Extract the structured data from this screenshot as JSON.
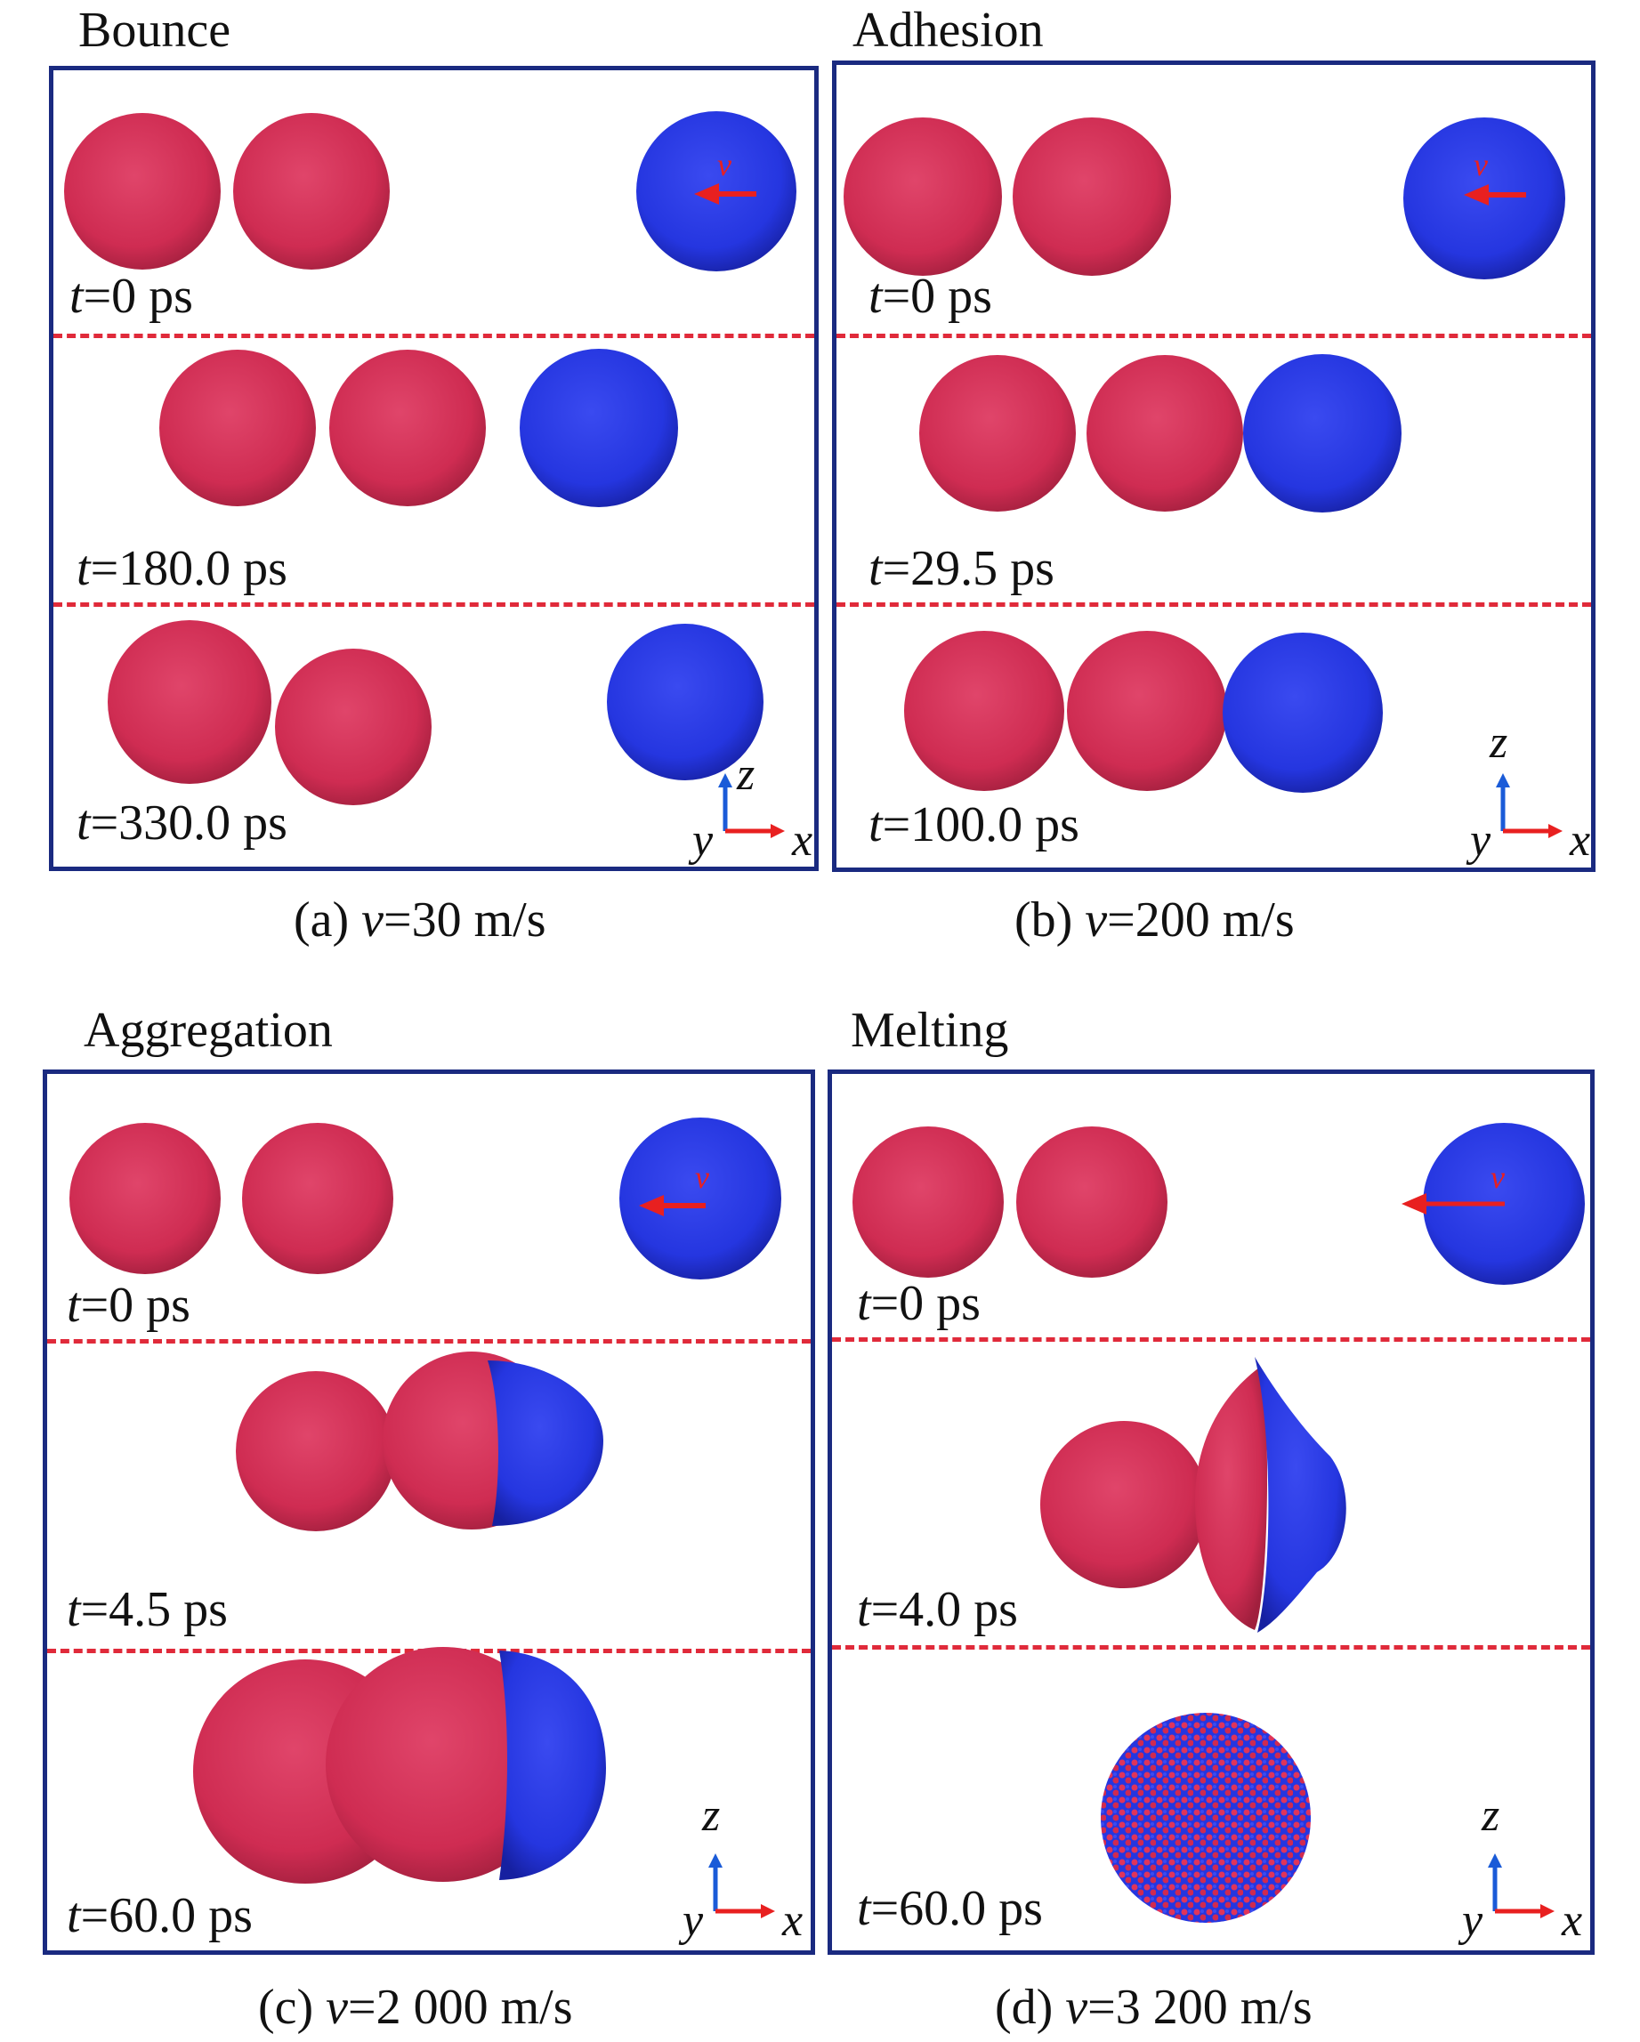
{
  "colors": {
    "particle_red": "#d42f55",
    "particle_red_dark": "#a01f3d",
    "particle_blue": "#2536e0",
    "particle_blue_dark": "#1620a0",
    "frame": "#1a2a80",
    "separator": "#e02a3a",
    "arrow_red": "#e82020",
    "axis_blue": "#1a5bd8",
    "axis_red": "#e82020"
  },
  "panels": [
    {
      "title": "Bounce",
      "caption": {
        "label": "(a)",
        "var": "v",
        "value": "=30 m/s"
      },
      "velocity_label": "v",
      "frames": [
        {
          "t_var": "t",
          "t_value": "=0 ps"
        },
        {
          "t_var": "t",
          "t_value": "=180.0 ps"
        },
        {
          "t_var": "t",
          "t_value": "=330.0 ps"
        }
      ],
      "axes": {
        "z": "z",
        "y": "y",
        "x": "x"
      }
    },
    {
      "title": "Adhesion",
      "caption": {
        "label": "(b)",
        "var": "v",
        "value": "=200 m/s"
      },
      "velocity_label": "v",
      "frames": [
        {
          "t_var": "t",
          "t_value": "=0 ps"
        },
        {
          "t_var": "t",
          "t_value": "=29.5 ps"
        },
        {
          "t_var": "t",
          "t_value": "=100.0 ps"
        }
      ],
      "axes": {
        "z": "z",
        "y": "y",
        "x": "x"
      }
    },
    {
      "title": "Aggregation",
      "caption": {
        "label": "(c)",
        "var": "v",
        "value": "=2 000 m/s"
      },
      "velocity_label": "v",
      "frames": [
        {
          "t_var": "t",
          "t_value": "=0 ps"
        },
        {
          "t_var": "t",
          "t_value": "=4.5 ps"
        },
        {
          "t_var": "t",
          "t_value": "=60.0 ps"
        }
      ],
      "axes": {
        "z": "z",
        "y": "y",
        "x": "x"
      }
    },
    {
      "title": "Melting",
      "caption": {
        "label": "(d)",
        "var": "v",
        "value": "=3 200 m/s"
      },
      "velocity_label": "v",
      "frames": [
        {
          "t_var": "t",
          "t_value": "=0 ps"
        },
        {
          "t_var": "t",
          "t_value": "=4.0 ps"
        },
        {
          "t_var": "t",
          "t_value": "=60.0 ps"
        }
      ],
      "axes": {
        "z": "z",
        "y": "y",
        "x": "x"
      }
    }
  ]
}
